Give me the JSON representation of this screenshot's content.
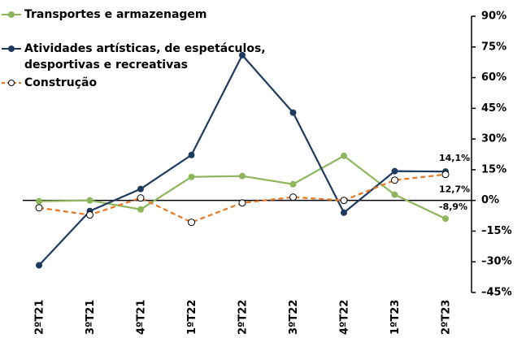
{
  "chart_data": {
    "type": "line",
    "categories": [
      "2ºT21",
      "3ºT21",
      "4ºT21",
      "1ºT22",
      "2ºT22",
      "3ºT22",
      "4ºT22",
      "1ºT23",
      "2ºT23"
    ],
    "series": [
      {
        "name": "Transportes e armazenagem",
        "color": "#8db65a",
        "dash": false,
        "marker": "filled",
        "values": [
          -0.4,
          0,
          -4.4,
          11.5,
          11.9,
          7.9,
          21.8,
          2.8,
          -8.9
        ],
        "value_labels": [
          null,
          null,
          null,
          null,
          null,
          null,
          null,
          null,
          "-8,9%"
        ]
      },
      {
        "name": "Atividades artísticas, de espetáculos, desportivas e recreativas",
        "color": "#1f3a5f",
        "dash": false,
        "marker": "filled",
        "values": [
          -31.7,
          -5.2,
          5.6,
          22.2,
          71,
          42.9,
          -6,
          14.3,
          14.1
        ],
        "value_labels": [
          null,
          null,
          null,
          null,
          null,
          null,
          null,
          null,
          "14,1%"
        ]
      },
      {
        "name": "Construção",
        "color": "#e87722",
        "dash": true,
        "marker": "hollow",
        "values": [
          -3.6,
          -7.1,
          1.2,
          -10.7,
          -1.2,
          1.6,
          0,
          9.9,
          12.7
        ],
        "value_labels": [
          null,
          null,
          null,
          null,
          null,
          null,
          null,
          null,
          "12,7%"
        ]
      }
    ],
    "ylim": [
      -45,
      90
    ],
    "yticks": [
      {
        "value": 90,
        "label": "90%"
      },
      {
        "value": 75,
        "label": "75%"
      },
      {
        "value": 60,
        "label": "60%"
      },
      {
        "value": 45,
        "label": "45%"
      },
      {
        "value": 30,
        "label": "30%"
      },
      {
        "value": 15,
        "label": "15%"
      },
      {
        "value": 0,
        "label": "0%"
      },
      {
        "value": -15,
        "label": "–15%"
      },
      {
        "value": -30,
        "label": "–30%"
      },
      {
        "value": -45,
        "label": "–45%"
      }
    ],
    "grid": false
  }
}
